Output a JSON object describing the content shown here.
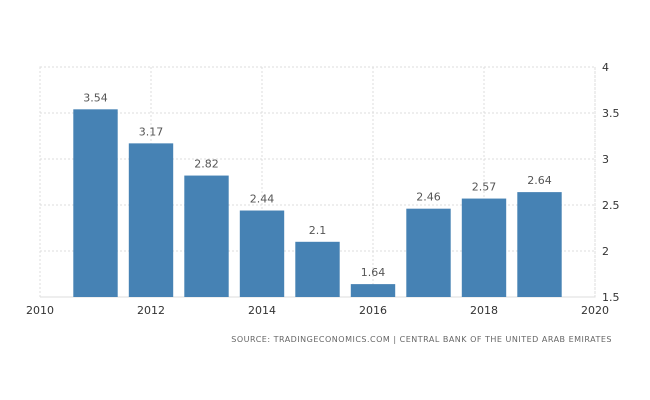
{
  "chart_data": {
    "type": "bar",
    "x": [
      2011,
      2012,
      2013,
      2014,
      2015,
      2016,
      2017,
      2018,
      2019
    ],
    "values": [
      3.54,
      3.17,
      2.82,
      2.44,
      2.1,
      1.64,
      2.46,
      2.57,
      2.64
    ],
    "data_labels": [
      "3.54",
      "3.17",
      "2.82",
      "2.44",
      "2.1",
      "1.64",
      "2.46",
      "2.57",
      "2.64"
    ],
    "xlim": [
      2010,
      2020
    ],
    "ylim": [
      1.5,
      4
    ],
    "x_ticks": [
      "2010",
      "2012",
      "2014",
      "2016",
      "2018",
      "2020"
    ],
    "y_ticks": [
      "1.5",
      "2",
      "2.5",
      "3",
      "3.5",
      "4"
    ],
    "y_axis_position": "right",
    "grid": true,
    "bar_color": "#4682b4",
    "source": "SOURCE: TRADINGECONOMICS.COM | CENTRAL BANK OF THE UNITED ARAB EMIRATES"
  }
}
